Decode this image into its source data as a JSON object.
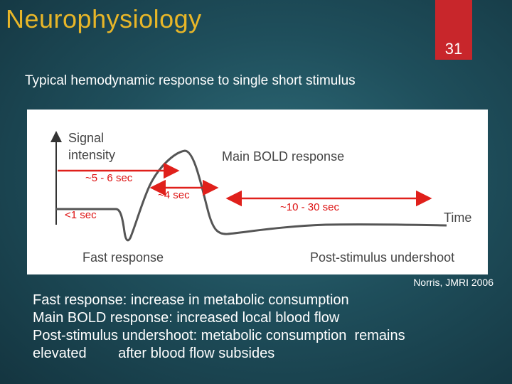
{
  "slide": {
    "title": "Neurophysiology",
    "page_number": "31",
    "subtitle": "Typical hemodynamic response to single short stimulus",
    "citation": "Norris, JMRI 2006",
    "bullets": [
      "Fast response: increase in metabolic consumption",
      "Main BOLD response: increased local blood flow",
      "Post-stimulus undershoot: metabolic consumption  remains",
      "elevated        after blood flow subsides"
    ]
  },
  "figure": {
    "y_axis_label_line1": "Signal",
    "y_axis_label_line2": "intensity",
    "x_axis_label": "Time",
    "label_main": "Main BOLD response",
    "label_fast": "Fast response",
    "label_post": "Post-stimulus undershoot",
    "annotations": {
      "lt1": "<1 sec",
      "t5_6": "~5 - 6 sec",
      "t4": "~4 sec",
      "t10_30": "~10 - 30 sec"
    },
    "colors": {
      "curve": "#555555",
      "arrows": "#e0201b",
      "label_text": "#444444"
    }
  }
}
